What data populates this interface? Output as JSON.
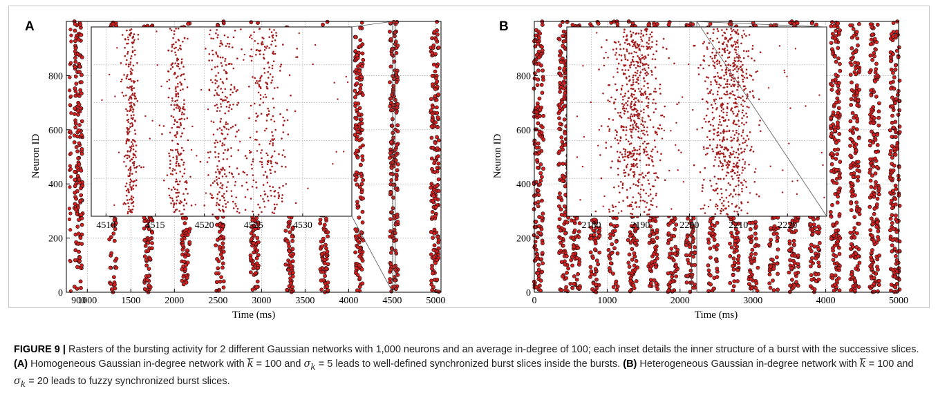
{
  "figure": {
    "caption_label": "FIGURE 9 |",
    "caption_intro": "Rasters of the bursting activity for 2 different Gaussian networks with 1,000 neurons and an average in-degree of 100; each inset details the inner structure of a burst with the successive slices.",
    "caption_a_label": "(A)",
    "caption_a_text_1": "Homogeneous Gaussian in-degree network with",
    "caption_a_text_2": "= 100 and",
    "caption_a_text_3": "= 5 leads to well-defined synchronized burst slices inside the bursts.",
    "caption_b_label": "(B)",
    "caption_b_text_1": "Heterogeneous Gaussian in-degree network with",
    "caption_b_text_2": "= 100 and",
    "caption_b_text_3": "= 20 leads to fuzzy synchronized burst slices.",
    "sym_k": "k",
    "sym_sigma": "σ",
    "sym_sub_k": "k"
  },
  "chart_data": [
    {
      "panel": "A",
      "type": "scatter",
      "title": "",
      "xlabel": "Time (ms)",
      "ylabel": "Neuron ID",
      "xlim": [
        760,
        5060
      ],
      "ylim": [
        0,
        1000
      ],
      "xticks": [
        1000,
        1500,
        2000,
        2500,
        3000,
        3500,
        4000,
        4500,
        5000
      ],
      "xtick_labels": [
        "1000",
        "1500",
        "2000",
        "2500",
        "3000",
        "3500",
        "4000",
        "4500",
        "5000"
      ],
      "edge_ticks": [
        {
          "value": 900,
          "label": "900"
        }
      ],
      "yticks": [
        0,
        200,
        400,
        600,
        800
      ],
      "grid": true,
      "bursts_ms": [
        900,
        1300,
        1700,
        2130,
        2520,
        2920,
        3320,
        3720,
        4120,
        4520,
        4990
      ],
      "partial_bursts_ms": [
        800
      ],
      "zoom_window_ms": [
        4506,
        4535
      ],
      "inset": {
        "xticks": [
          4510,
          4515,
          4520,
          4525,
          4530
        ],
        "slices_ms": [
          4512.5,
          4517.3,
          4521.8,
          4526.5
        ],
        "x_range_ms": [
          4508.5,
          4535
        ]
      }
    },
    {
      "panel": "B",
      "type": "scatter",
      "title": "",
      "xlabel": "Time (ms)",
      "ylabel": "Neuron ID",
      "xlim": [
        0,
        5000
      ],
      "ylim": [
        0,
        1000
      ],
      "xticks": [
        0,
        1000,
        2000,
        3000,
        4000,
        5000
      ],
      "yticks": [
        0,
        200,
        400,
        600,
        800
      ],
      "grid": true,
      "bursts_ms": [
        60,
        400,
        560,
        830,
        1080,
        1350,
        1630,
        1900,
        2150,
        2450,
        2740,
        3010,
        3290,
        3560,
        3850,
        4130,
        4400,
        4670,
        4950
      ],
      "zoom_window_ms": [
        2160,
        2230
      ],
      "inset": {
        "xticks": [
          2180,
          2190,
          2200,
          2210,
          2220
        ],
        "slices_ms": [
          2189,
          2208
        ],
        "x_range_ms": [
          2175,
          2228
        ]
      }
    }
  ],
  "colors": {
    "spike_fill": "#d41f1f",
    "spike_edge": "#111111",
    "inset_spike": "#a51c1c",
    "grid": "#9a9a9a"
  }
}
